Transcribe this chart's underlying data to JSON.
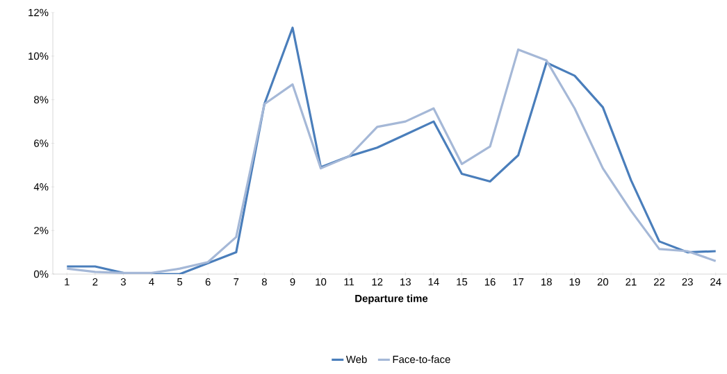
{
  "chart_data": {
    "type": "line",
    "xlabel": "Departure time",
    "categories": [
      "1",
      "2",
      "3",
      "4",
      "5",
      "6",
      "7",
      "8",
      "9",
      "10",
      "11",
      "12",
      "13",
      "14",
      "15",
      "16",
      "17",
      "18",
      "19",
      "20",
      "21",
      "22",
      "23",
      "24"
    ],
    "series": [
      {
        "name": "Web",
        "color": "#4a7ebb",
        "values": [
          0.35,
          0.35,
          0.05,
          0,
          0,
          0.5,
          1.0,
          7.8,
          11.3,
          4.9,
          5.4,
          5.8,
          6.4,
          7.0,
          4.6,
          4.25,
          5.45,
          9.7,
          9.1,
          7.65,
          4.3,
          1.5,
          1.0,
          1.05
        ]
      },
      {
        "name": "Face-to-face",
        "color": "#a5b8d7",
        "values": [
          0.25,
          0.1,
          0.05,
          0.05,
          0.25,
          0.55,
          1.7,
          7.8,
          8.7,
          4.85,
          5.4,
          6.75,
          7.0,
          7.6,
          5.05,
          5.85,
          10.3,
          9.8,
          7.6,
          4.85,
          2.9,
          1.15,
          1.05,
          0.6
        ]
      }
    ],
    "ylim": [
      0,
      12
    ],
    "yticks": [
      {
        "value": 0,
        "label": "0%"
      },
      {
        "value": 2,
        "label": "2%"
      },
      {
        "value": 4,
        "label": "4%"
      },
      {
        "value": 6,
        "label": "6%"
      },
      {
        "value": 8,
        "label": "8%"
      },
      {
        "value": 10,
        "label": "10%"
      },
      {
        "value": 12,
        "label": "12%"
      }
    ],
    "grid": false,
    "legend": "bottom",
    "marker": "none",
    "line_style": "solid"
  }
}
